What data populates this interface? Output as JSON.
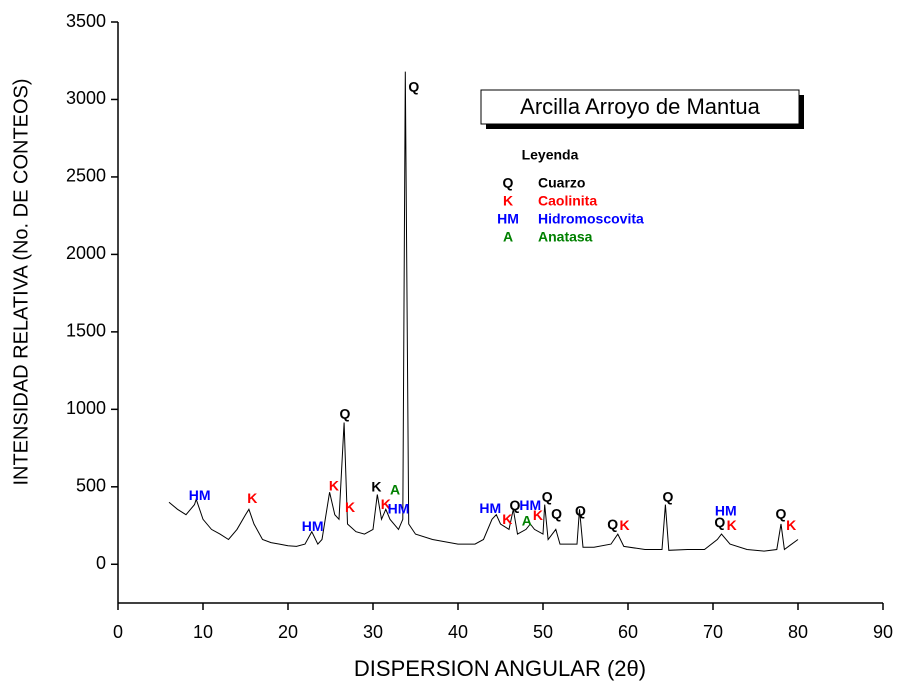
{
  "chart_data": {
    "type": "line",
    "title": "Arcilla Arroyo de Mantua",
    "xlabel": "DISPERSION ANGULAR (2θ)",
    "ylabel": "INTENSIDAD RELATIVA (No. DE CONTEOS)",
    "xlim": [
      0,
      90
    ],
    "xticks": [
      0,
      10,
      20,
      30,
      40,
      50,
      60,
      70,
      80,
      90
    ],
    "ylim": [
      -250,
      3500
    ],
    "yticks": [
      0,
      500,
      1000,
      1500,
      2000,
      2500,
      3000,
      3500
    ],
    "color": "#000000",
    "x": [
      6,
      7,
      8,
      9,
      9.2,
      10,
      11,
      12,
      13,
      14,
      15,
      15.4,
      16,
      17,
      18,
      19,
      20,
      21,
      22,
      22.8,
      23.5,
      24,
      24.9,
      25.5,
      26,
      26.6,
      27,
      28,
      29,
      30,
      30.5,
      31,
      31.5,
      32,
      33,
      33.5,
      33.8,
      34.2,
      35,
      37,
      40,
      42,
      43,
      44,
      44.5,
      45,
      46,
      46.5,
      47,
      48,
      48.5,
      49,
      50,
      50.2,
      50.6,
      51.5,
      52,
      54,
      54.3,
      54.7,
      56,
      58,
      58.8,
      59.5,
      62,
      64,
      64.4,
      64.8,
      67,
      69,
      70.5,
      71,
      72,
      74,
      76,
      77.5,
      78,
      78.4,
      79,
      80
    ],
    "values": [
      400,
      355,
      320,
      385,
      420,
      290,
      225,
      195,
      160,
      225,
      320,
      355,
      260,
      160,
      140,
      130,
      120,
      115,
      130,
      210,
      130,
      160,
      465,
      320,
      290,
      915,
      260,
      210,
      195,
      225,
      450,
      290,
      355,
      290,
      225,
      290,
      3180,
      260,
      195,
      160,
      130,
      130,
      160,
      290,
      320,
      260,
      225,
      355,
      195,
      225,
      260,
      225,
      195,
      385,
      160,
      225,
      130,
      130,
      355,
      110,
      110,
      130,
      195,
      115,
      95,
      95,
      385,
      90,
      95,
      95,
      160,
      195,
      130,
      95,
      85,
      95,
      260,
      95,
      120,
      160
    ],
    "legend_title": "Leyenda",
    "legend": [
      {
        "symbol": "Q",
        "name": "Cuarzo",
        "color": "#000000"
      },
      {
        "symbol": "K",
        "name": "Caolinita",
        "color": "#ff0000"
      },
      {
        "symbol": "HM",
        "name": "Hidromoscovita",
        "color": "#0000ff"
      },
      {
        "symbol": "A",
        "name": "Anatasa",
        "color": "#008000"
      }
    ],
    "annotations": [
      {
        "text": "Q",
        "x": 34.8,
        "y": 3075,
        "color": "#000000"
      },
      {
        "text": "HM",
        "x": 9.6,
        "y": 440,
        "color": "#0000ff"
      },
      {
        "text": "K",
        "x": 15.8,
        "y": 420,
        "color": "#ff0000"
      },
      {
        "text": "HM",
        "x": 22.9,
        "y": 240,
        "color": "#0000ff"
      },
      {
        "text": "K",
        "x": 25.4,
        "y": 500,
        "color": "#ff0000"
      },
      {
        "text": "Q",
        "x": 26.7,
        "y": 965,
        "color": "#000000"
      },
      {
        "text": "K",
        "x": 27.3,
        "y": 360,
        "color": "#ff0000"
      },
      {
        "text": "K",
        "x": 30.4,
        "y": 495,
        "color": "#000000"
      },
      {
        "text": "A",
        "x": 32.6,
        "y": 475,
        "color": "#008000"
      },
      {
        "text": "K",
        "x": 31.5,
        "y": 380,
        "color": "#ff0000"
      },
      {
        "text": "HM",
        "x": 33.0,
        "y": 350,
        "color": "#0000ff"
      },
      {
        "text": "HM",
        "x": 43.8,
        "y": 355,
        "color": "#0000ff"
      },
      {
        "text": "K",
        "x": 45.8,
        "y": 285,
        "color": "#ff0000"
      },
      {
        "text": "Q",
        "x": 46.7,
        "y": 375,
        "color": "#000000"
      },
      {
        "text": "HM",
        "x": 48.5,
        "y": 375,
        "color": "#0000ff"
      },
      {
        "text": "A",
        "x": 48.1,
        "y": 275,
        "color": "#008000"
      },
      {
        "text": "K",
        "x": 49.4,
        "y": 310,
        "color": "#ff0000"
      },
      {
        "text": "Q",
        "x": 50.5,
        "y": 430,
        "color": "#000000"
      },
      {
        "text": "Q",
        "x": 51.6,
        "y": 320,
        "color": "#000000"
      },
      {
        "text": "Q",
        "x": 54.4,
        "y": 340,
        "color": "#000000"
      },
      {
        "text": "Q",
        "x": 58.2,
        "y": 250,
        "color": "#000000"
      },
      {
        "text": "K",
        "x": 59.6,
        "y": 245,
        "color": "#ff0000"
      },
      {
        "text": "Q",
        "x": 64.7,
        "y": 430,
        "color": "#000000"
      },
      {
        "text": "HM",
        "x": 71.5,
        "y": 340,
        "color": "#0000ff"
      },
      {
        "text": "Q",
        "x": 70.8,
        "y": 265,
        "color": "#000000"
      },
      {
        "text": "K",
        "x": 72.2,
        "y": 245,
        "color": "#ff0000"
      },
      {
        "text": "Q",
        "x": 78.0,
        "y": 320,
        "color": "#000000"
      },
      {
        "text": "K",
        "x": 79.2,
        "y": 245,
        "color": "#ff0000"
      }
    ]
  }
}
